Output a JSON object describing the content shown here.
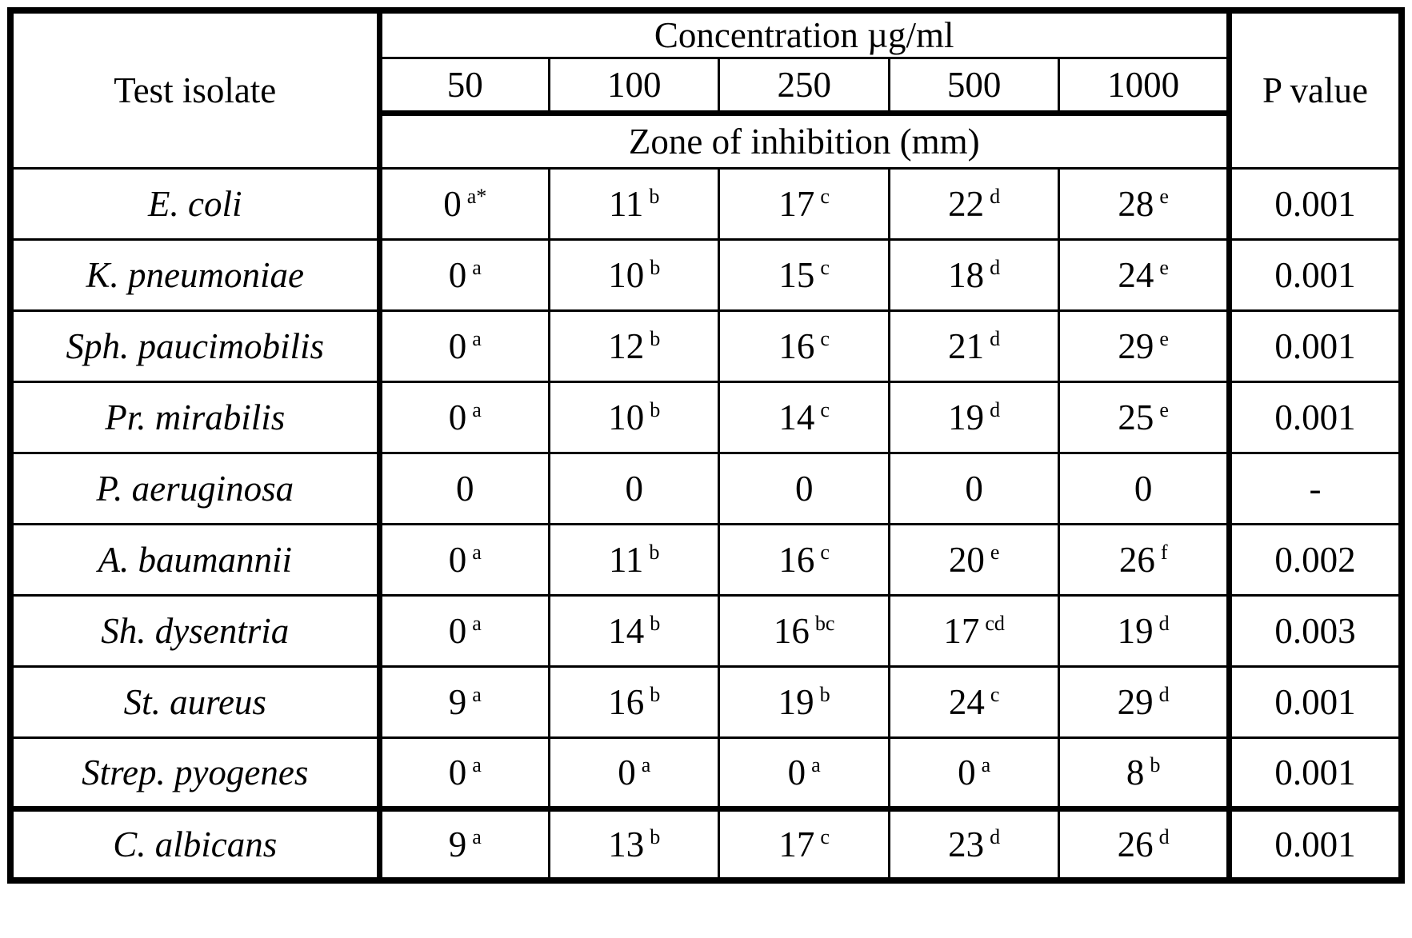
{
  "table": {
    "header": {
      "test_isolate": "Test isolate",
      "concentration": "Concentration µg/ml",
      "concentrations": [
        "50",
        "100",
        "250",
        "500",
        "1000"
      ],
      "zone": "Zone of inhibition (mm)",
      "p_value": "P value"
    },
    "rows": [
      {
        "isolate": "E. coli",
        "values": [
          {
            "v": "0",
            "s": "a*"
          },
          {
            "v": "11",
            "s": "b"
          },
          {
            "v": "17",
            "s": "c"
          },
          {
            "v": "22",
            "s": "d"
          },
          {
            "v": "28",
            "s": "e"
          }
        ],
        "p": "0.001",
        "thick_top": false
      },
      {
        "isolate": "K. pneumoniae",
        "values": [
          {
            "v": "0",
            "s": "a"
          },
          {
            "v": "10",
            "s": "b"
          },
          {
            "v": "15",
            "s": "c"
          },
          {
            "v": "18",
            "s": "d"
          },
          {
            "v": "24",
            "s": "e"
          }
        ],
        "p": "0.001",
        "thick_top": false
      },
      {
        "isolate": "Sph. paucimobilis",
        "values": [
          {
            "v": "0",
            "s": "a"
          },
          {
            "v": "12",
            "s": "b"
          },
          {
            "v": "16",
            "s": "c"
          },
          {
            "v": "21",
            "s": "d"
          },
          {
            "v": "29",
            "s": "e"
          }
        ],
        "p": "0.001",
        "thick_top": false
      },
      {
        "isolate": "Pr. mirabilis",
        "values": [
          {
            "v": "0",
            "s": "a"
          },
          {
            "v": "10",
            "s": "b"
          },
          {
            "v": "14",
            "s": "c"
          },
          {
            "v": "19",
            "s": "d"
          },
          {
            "v": "25",
            "s": "e"
          }
        ],
        "p": "0.001",
        "thick_top": false
      },
      {
        "isolate": "P. aeruginosa",
        "values": [
          {
            "v": "0",
            "s": ""
          },
          {
            "v": "0",
            "s": ""
          },
          {
            "v": "0",
            "s": ""
          },
          {
            "v": "0",
            "s": ""
          },
          {
            "v": "0",
            "s": ""
          }
        ],
        "p": "-",
        "thick_top": false
      },
      {
        "isolate": "A. baumannii",
        "values": [
          {
            "v": "0",
            "s": "a"
          },
          {
            "v": "11",
            "s": "b"
          },
          {
            "v": "16",
            "s": "c"
          },
          {
            "v": "20",
            "s": "e"
          },
          {
            "v": "26",
            "s": "f"
          }
        ],
        "p": "0.002",
        "thick_top": false
      },
      {
        "isolate": "Sh. dysentria",
        "values": [
          {
            "v": "0",
            "s": "a"
          },
          {
            "v": "14",
            "s": "b"
          },
          {
            "v": "16",
            "s": "bc"
          },
          {
            "v": "17",
            "s": "cd"
          },
          {
            "v": "19",
            "s": "d"
          }
        ],
        "p": "0.003",
        "thick_top": false
      },
      {
        "isolate": "St. aureus",
        "values": [
          {
            "v": "9",
            "s": "a"
          },
          {
            "v": "16",
            "s": "b"
          },
          {
            "v": "19",
            "s": "b"
          },
          {
            "v": "24",
            "s": "c"
          },
          {
            "v": "29",
            "s": "d"
          }
        ],
        "p": "0.001",
        "thick_top": false
      },
      {
        "isolate": "Strep. pyogenes",
        "values": [
          {
            "v": "0",
            "s": "a"
          },
          {
            "v": "0",
            "s": "a"
          },
          {
            "v": "0",
            "s": "a"
          },
          {
            "v": "0",
            "s": "a"
          },
          {
            "v": "8",
            "s": "b"
          }
        ],
        "p": "0.001",
        "thick_top": false
      },
      {
        "isolate": "C. albicans",
        "values": [
          {
            "v": "9",
            "s": "a"
          },
          {
            "v": "13",
            "s": "b"
          },
          {
            "v": "17",
            "s": "c"
          },
          {
            "v": "23",
            "s": "d"
          },
          {
            "v": "26",
            "s": "d"
          }
        ],
        "p": "0.001",
        "thick_top": true
      }
    ]
  },
  "chart_data": {
    "type": "table",
    "title": "Zone of inhibition (mm) by concentration (µg/ml)",
    "columns": [
      "Test isolate",
      "50",
      "100",
      "250",
      "500",
      "1000",
      "P value"
    ],
    "rows": [
      [
        "E. coli",
        "0 a*",
        "11 b",
        "17 c",
        "22 d",
        "28 e",
        "0.001"
      ],
      [
        "K. pneumoniae",
        "0 a",
        "10 b",
        "15 c",
        "18 d",
        "24 e",
        "0.001"
      ],
      [
        "Sph. paucimobilis",
        "0 a",
        "12 b",
        "16 c",
        "21 d",
        "29 e",
        "0.001"
      ],
      [
        "Pr. mirabilis",
        "0 a",
        "10 b",
        "14 c",
        "19 d",
        "25 e",
        "0.001"
      ],
      [
        "P. aeruginosa",
        "0",
        "0",
        "0",
        "0",
        "0",
        "-"
      ],
      [
        "A. baumannii",
        "0 a",
        "11 b",
        "16 c",
        "20 e",
        "26 f",
        "0.002"
      ],
      [
        "Sh. dysentria",
        "0 a",
        "14 b",
        "16 bc",
        "17 cd",
        "19 d",
        "0.003"
      ],
      [
        "St. aureus",
        "9 a",
        "16 b",
        "19 b",
        "24 c",
        "29 d",
        "0.001"
      ],
      [
        "Strep. pyogenes",
        "0 a",
        "0 a",
        "0 a",
        "0 a",
        "8 b",
        "0.001"
      ],
      [
        "C. albicans",
        "9 a",
        "13 b",
        "17 c",
        "23 d",
        "26 d",
        "0.001"
      ]
    ]
  },
  "colors": {
    "border": "#000000",
    "background": "#ffffff",
    "text": "#000000"
  }
}
